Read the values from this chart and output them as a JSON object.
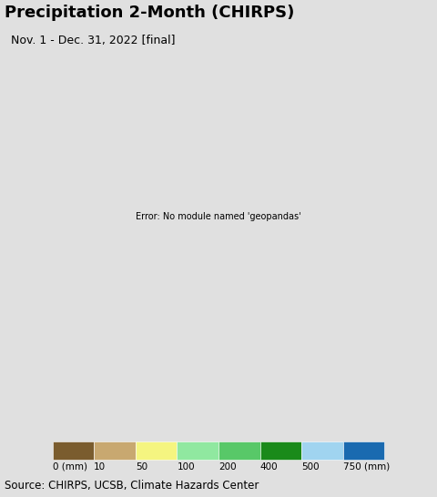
{
  "title": "Precipitation 2-Month (CHIRPS)",
  "subtitle": "Nov. 1 - Dec. 31, 2022 [final]",
  "source_text": "Source: CHIRPS, UCSB, Climate Hazards Center",
  "colorbar_labels": [
    "0 (mm)",
    "10",
    "50",
    "100",
    "200",
    "400",
    "500",
    "750 (mm)"
  ],
  "colorbar_colors": [
    "#7a5c2e",
    "#c8a870",
    "#f5f580",
    "#90e8a0",
    "#58c868",
    "#1a8a1a",
    "#a0d4f0",
    "#1a6ab0"
  ],
  "background_color": "#e0e0e0",
  "ocean_color": "#b8e0f0",
  "figsize": [
    4.8,
    5.46
  ],
  "dpi": 100,
  "title_fontsize": 13,
  "subtitle_fontsize": 9,
  "source_fontsize": 8.5,
  "map_extent": [
    55.0,
    102.0,
    5.0,
    42.0
  ]
}
